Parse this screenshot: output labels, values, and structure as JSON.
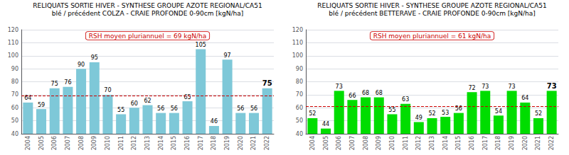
{
  "chart_data": [
    {
      "type": "bar",
      "title": "RELIQUATS SORTIE HIVER - SYNTHESE GROUPE AZOTE REGIONAL/CA51",
      "subtitle": "blé / précédent COLZA - CRAIE PROFONDE 0-90cm [kgN/ha]",
      "categories": [
        "2004",
        "2005",
        "2006",
        "2007",
        "2008",
        "2009",
        "2010",
        "2011",
        "2012",
        "2013",
        "2014",
        "2015",
        "2016",
        "2017",
        "2018",
        "2019",
        "2020",
        "2021",
        "2022"
      ],
      "values": [
        64,
        59,
        75,
        76,
        90,
        95,
        70,
        55,
        60,
        62,
        56,
        56,
        65,
        105,
        46,
        97,
        56,
        56,
        75
      ],
      "color": "#7ec8d8",
      "mean_line": {
        "value": 69,
        "label": "RSH moyen pluriannuel = 69 kgN/ha",
        "color": "#cc0000"
      },
      "ylim": [
        40,
        120
      ],
      "yticks": [
        40,
        50,
        60,
        70,
        80,
        90,
        100,
        110,
        120
      ],
      "grid": true,
      "data_labels": true
    },
    {
      "type": "bar",
      "title": "RELIQUATS SORTIE HIVER - SYNTHESE GROUPE AZOTE REGIONAL/CA51",
      "subtitle": "blé / précédent BETTERAVE - CRAIE PROFONDE 0-90cm [kgN/ha]",
      "categories": [
        "2004",
        "2005",
        "2006",
        "2007",
        "2008",
        "2009",
        "2010",
        "2011",
        "2012",
        "2013",
        "2014",
        "2015",
        "2016",
        "2017",
        "2018",
        "2019",
        "2020",
        "2021",
        "2022"
      ],
      "values": [
        52,
        44,
        73,
        66,
        68,
        68,
        55,
        63,
        49,
        52,
        53,
        56,
        72,
        73,
        54,
        73,
        64,
        52,
        73
      ],
      "color": "#00dd00",
      "mean_line": {
        "value": 61,
        "label": "RSH moyen pluriannuel = 61 kgN/ha",
        "color": "#cc0000"
      },
      "ylim": [
        40,
        120
      ],
      "yticks": [
        40,
        50,
        60,
        70,
        80,
        90,
        100,
        110,
        120
      ],
      "grid": true,
      "data_labels": true
    }
  ]
}
